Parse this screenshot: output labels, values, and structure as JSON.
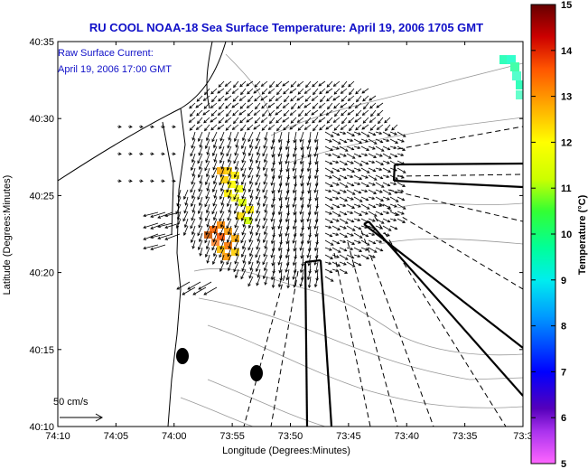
{
  "chart_data": {
    "type": "map",
    "title": "RU COOL  NOAA-18  Sea Surface Temperature:  April 19, 2006 1705 GMT",
    "annotation": [
      "Raw Surface Current:",
      "April 19, 2006 17:00 GMT"
    ],
    "scale_label": "50 cm/s",
    "xlabel": "Longitude (Degrees:Minutes)",
    "ylabel": "Latitude (Degrees:Minutes)",
    "x_ticks": [
      "74:10",
      "74:05",
      "74:00",
      "73:55",
      "73:50",
      "73:45",
      "73:40",
      "73:35",
      "73:3"
    ],
    "y_ticks": [
      "40:35",
      "40:30",
      "40:25",
      "40:20",
      "40:15",
      "40:10"
    ],
    "xlim_deg": [
      -74.1667,
      -73.5
    ],
    "ylim_deg": [
      40.1667,
      40.5833
    ],
    "colorbar": {
      "label": "Temperature (°C)",
      "ticks": [
        "15",
        "14",
        "13",
        "12",
        "11",
        "10",
        "9",
        "8",
        "7",
        "6",
        "5"
      ],
      "range": [
        5,
        15
      ],
      "colors": [
        "#ff66ff",
        "#4400aa",
        "#0000ff",
        "#00aaff",
        "#00ffcc",
        "#33ff33",
        "#ccff00",
        "#ffff00",
        "#ffaa00",
        "#ff4400",
        "#cc0000",
        "#660000"
      ]
    }
  }
}
